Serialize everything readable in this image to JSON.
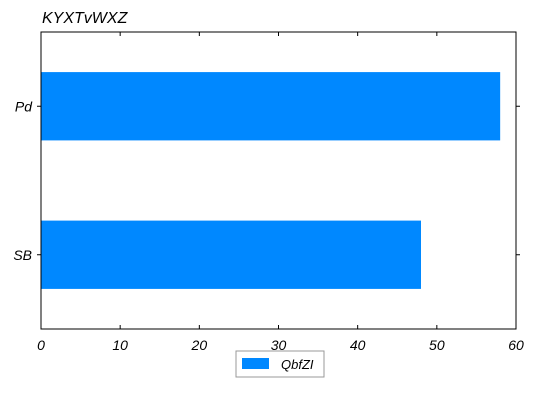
{
  "chart_data": {
    "type": "bar",
    "orientation": "horizontal",
    "title": "KYXTvWXZ",
    "xlabel": "",
    "ylabel": "",
    "categories": [
      "Pd",
      "SB"
    ],
    "series": [
      {
        "name": "QbfZI",
        "values": [
          58,
          48
        ],
        "color": "#0088ff"
      }
    ],
    "xlim": [
      0,
      60
    ],
    "xticks": [
      0,
      10,
      20,
      30,
      40,
      50,
      60
    ],
    "grid": false,
    "legend_position": "bottom-center"
  }
}
